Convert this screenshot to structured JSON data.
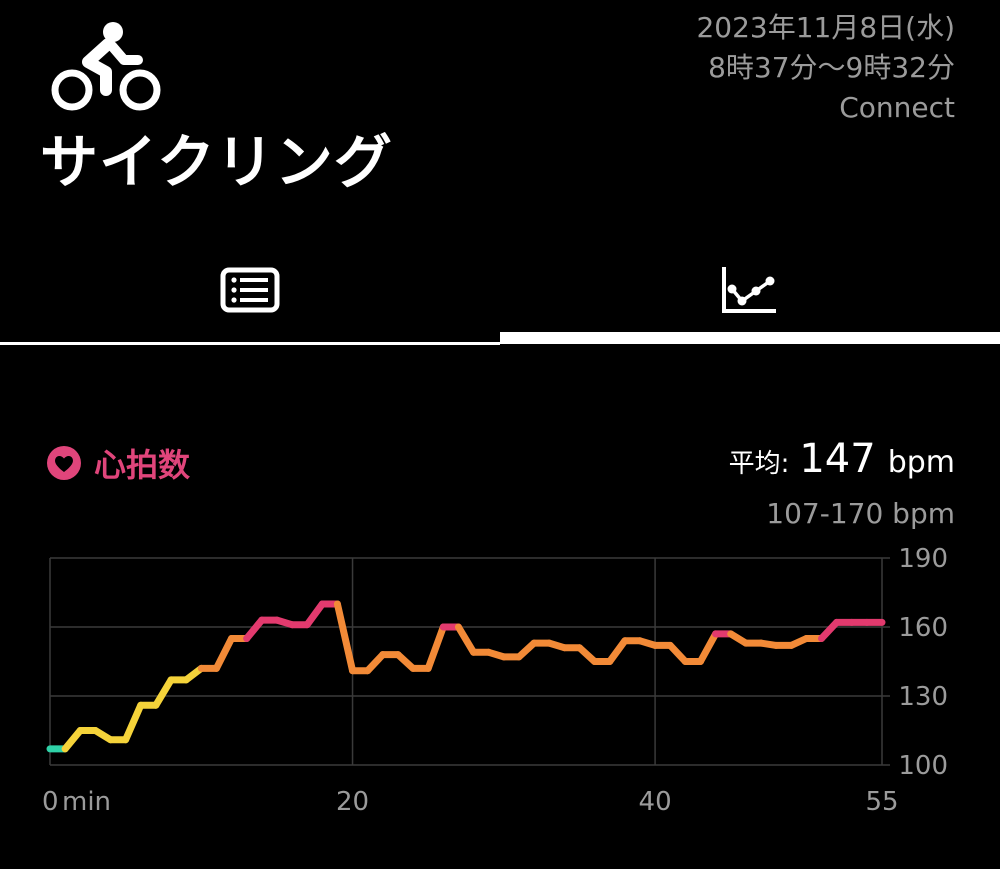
{
  "header": {
    "workout_icon": "cycling-icon",
    "title": "サイクリング",
    "date": "2023年11月8日(水)",
    "time_range": "8時37分〜9時32分",
    "source": "Connect"
  },
  "tabs": [
    {
      "icon": "list-icon",
      "selected": false
    },
    {
      "icon": "chart-icon",
      "selected": true
    }
  ],
  "heart_rate": {
    "icon": "heart-icon",
    "label": "心拍数",
    "accent_color": "#e0457b",
    "avg_prefix": "平均:",
    "avg_value": "147",
    "avg_unit": "bpm",
    "range_text": "107-170 bpm"
  },
  "chart_data": {
    "type": "line",
    "xlabel": "",
    "ylabel": "",
    "x_unit": "min",
    "xlim": [
      0,
      55
    ],
    "ylim": [
      100,
      190
    ],
    "xticks": [
      0,
      20,
      40,
      55
    ],
    "yticks": [
      100,
      130,
      160,
      190
    ],
    "grid": true,
    "color_scale": {
      "low": "#2fd2a8",
      "mid_low": "#f5d33a",
      "mid": "#f28a37",
      "high": "#e23a6e"
    },
    "x": [
      0,
      1,
      2,
      3,
      4,
      5,
      6,
      7,
      8,
      9,
      10,
      11,
      12,
      13,
      14,
      15,
      16,
      17,
      18,
      19,
      20,
      21,
      22,
      23,
      24,
      25,
      26,
      27,
      28,
      29,
      30,
      31,
      32,
      33,
      34,
      35,
      36,
      37,
      38,
      39,
      40,
      41,
      42,
      43,
      44,
      45,
      46,
      47,
      48,
      49,
      50,
      51,
      52,
      53,
      54,
      55
    ],
    "y": [
      107,
      107,
      115,
      115,
      111,
      111,
      126,
      126,
      137,
      137,
      142,
      142,
      155,
      155,
      163,
      163,
      161,
      161,
      170,
      170,
      141,
      141,
      148,
      148,
      142,
      142,
      160,
      160,
      149,
      149,
      147,
      147,
      153,
      153,
      151,
      151,
      145,
      145,
      154,
      154,
      152,
      152,
      145,
      145,
      157,
      157,
      153,
      153,
      152,
      152,
      155,
      155,
      162,
      162,
      162,
      162
    ]
  }
}
